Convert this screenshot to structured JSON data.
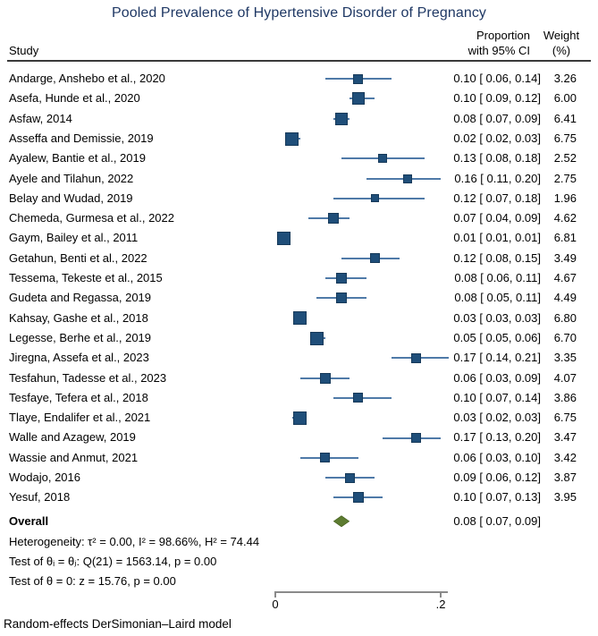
{
  "title": "Pooled Prevalence of Hypertensive Disorder of Pregnancy",
  "header": {
    "study": "Study",
    "proportion_line1": "Proportion",
    "proportion_line2": "with 95% CI",
    "weight_line1": "Weight",
    "weight_line2": "(%)"
  },
  "chart_data": {
    "type": "scatter",
    "subtype": "forest-plot",
    "title": "Pooled Prevalence of Hypertensive Disorder of Pregnancy",
    "x_axis": {
      "range": [
        0,
        0.2
      ],
      "tick_values": [
        0,
        0.2
      ],
      "tick_labels": [
        "0",
        ".2"
      ]
    },
    "legend_position": "none",
    "grid": false,
    "studies": [
      {
        "study": "Andarge, Anshebo et al., 2020",
        "est": 0.1,
        "lo": 0.06,
        "hi": 0.14,
        "weight": 3.26
      },
      {
        "study": "Asefa, Hunde et al., 2020",
        "est": 0.1,
        "lo": 0.09,
        "hi": 0.12,
        "weight": 6.0
      },
      {
        "study": "Asfaw, 2014",
        "est": 0.08,
        "lo": 0.07,
        "hi": 0.09,
        "weight": 6.41
      },
      {
        "study": "Asseffa and Demissie, 2019",
        "est": 0.02,
        "lo": 0.02,
        "hi": 0.03,
        "weight": 6.75
      },
      {
        "study": "Ayalew, Bantie et al., 2019",
        "est": 0.13,
        "lo": 0.08,
        "hi": 0.18,
        "weight": 2.52
      },
      {
        "study": "Ayele and Tilahun, 2022",
        "est": 0.16,
        "lo": 0.11,
        "hi": 0.2,
        "weight": 2.75
      },
      {
        "study": "Belay and Wudad, 2019",
        "est": 0.12,
        "lo": 0.07,
        "hi": 0.18,
        "weight": 1.96
      },
      {
        "study": "Chemeda, Gurmesa et al., 2022",
        "est": 0.07,
        "lo": 0.04,
        "hi": 0.09,
        "weight": 4.62
      },
      {
        "study": "Gaym, Bailey et al., 2011",
        "est": 0.01,
        "lo": 0.01,
        "hi": 0.01,
        "weight": 6.81
      },
      {
        "study": "Getahun, Benti et al., 2022",
        "est": 0.12,
        "lo": 0.08,
        "hi": 0.15,
        "weight": 3.49
      },
      {
        "study": "Tessema, Tekeste et al., 2015",
        "est": 0.08,
        "lo": 0.06,
        "hi": 0.11,
        "weight": 4.67
      },
      {
        "study": "Gudeta and Regassa, 2019",
        "est": 0.08,
        "lo": 0.05,
        "hi": 0.11,
        "weight": 4.49
      },
      {
        "study": "Kahsay, Gashe et al., 2018",
        "est": 0.03,
        "lo": 0.03,
        "hi": 0.03,
        "weight": 6.8
      },
      {
        "study": "Legesse, Berhe et al., 2019",
        "est": 0.05,
        "lo": 0.05,
        "hi": 0.06,
        "weight": 6.7
      },
      {
        "study": "Jiregna, Assefa et al., 2023",
        "est": 0.17,
        "lo": 0.14,
        "hi": 0.21,
        "weight": 3.35
      },
      {
        "study": "Tesfahun, Tadesse et al., 2023",
        "est": 0.06,
        "lo": 0.03,
        "hi": 0.09,
        "weight": 4.07
      },
      {
        "study": "Tesfaye, Tefera et al., 2018",
        "est": 0.1,
        "lo": 0.07,
        "hi": 0.14,
        "weight": 3.86
      },
      {
        "study": "Tlaye, Endalifer et al., 2021",
        "est": 0.03,
        "lo": 0.02,
        "hi": 0.03,
        "weight": 6.75
      },
      {
        "study": "Walle and Azagew, 2019",
        "est": 0.17,
        "lo": 0.13,
        "hi": 0.2,
        "weight": 3.47
      },
      {
        "study": "Wassie and Anmut, 2021",
        "est": 0.06,
        "lo": 0.03,
        "hi": 0.1,
        "weight": 3.42
      },
      {
        "study": "Wodajo, 2016",
        "est": 0.09,
        "lo": 0.06,
        "hi": 0.12,
        "weight": 3.87
      },
      {
        "study": "Yesuf, 2018",
        "est": 0.1,
        "lo": 0.07,
        "hi": 0.13,
        "weight": 3.95
      }
    ],
    "overall": {
      "label": "Overall",
      "est": 0.08,
      "lo": 0.07,
      "hi": 0.09
    },
    "colors": {
      "square": "#1f4e79",
      "ci_line": "#4f7aa8",
      "diamond": "#5d7c31",
      "diamond_border": "#46611f",
      "title": "#1f3864",
      "axis": "#8a8a8a"
    }
  },
  "stats": {
    "heterogeneity": "Heterogeneity: τ² = 0.00, I² = 98.66%, H² = 74.44",
    "test_theta_ij": "Test of θᵢ = θⱼ: Q(21) = 1563.14, p = 0.00",
    "test_theta_zero": "Test of θ = 0: z = 15.76, p = 0.00"
  },
  "footnote": "Random-effects DerSimonian–Laird model"
}
